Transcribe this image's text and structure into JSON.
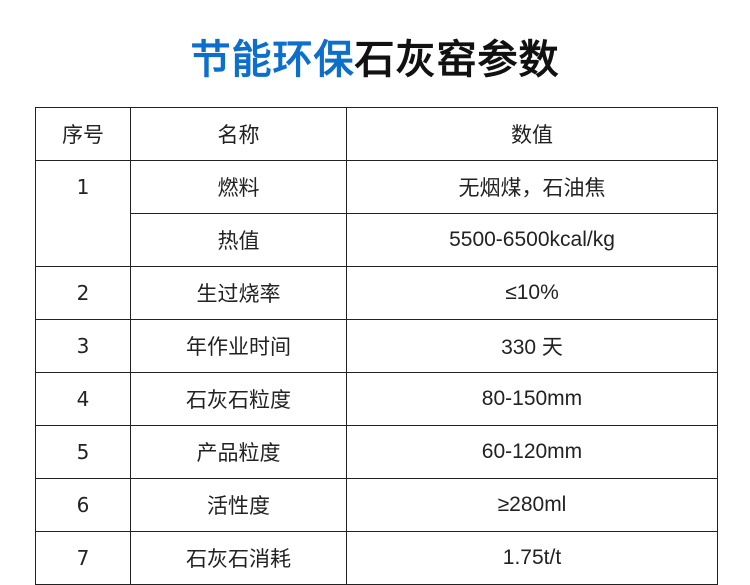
{
  "title": {
    "highlight": "节能环保",
    "rest": "石灰窑参数",
    "highlight_color": "#0b6fcb"
  },
  "table": {
    "headers": [
      "序号",
      "名称",
      "数值"
    ],
    "rows": [
      {
        "no": "1",
        "name": "燃料",
        "value": "无烟煤，石油焦"
      },
      {
        "no": "",
        "name": "热值",
        "value": "5500-6500kcal/kg"
      },
      {
        "no": "2",
        "name": "生过烧率",
        "value": "≤10%"
      },
      {
        "no": "3",
        "name": "年作业时间",
        "value": "330 天"
      },
      {
        "no": "4",
        "name": "石灰石粒度",
        "value": "80-150mm"
      },
      {
        "no": "5",
        "name": "产品粒度",
        "value": "60-120mm"
      },
      {
        "no": "6",
        "name": "活性度",
        "value": "≥280ml"
      },
      {
        "no": "7",
        "name": "石灰石消耗",
        "value": "1.75t/t"
      }
    ]
  }
}
